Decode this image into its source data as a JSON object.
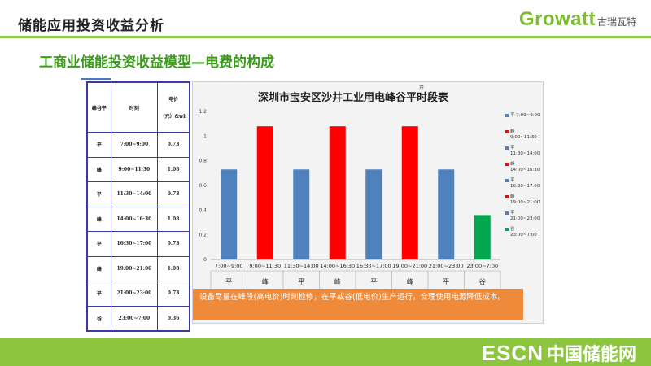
{
  "header": {
    "page_title": "储能应用投资收益分析",
    "subtitle": "工商业储能投资收益模型—电费的构成"
  },
  "brand": {
    "logo_text": "Growatt",
    "logo_cn": "古瑞瓦特",
    "footer_logo": "ESCN",
    "footer_cn": "中国储能网"
  },
  "table": {
    "headers": [
      "峰谷平",
      "时刻",
      "电价",
      "（元）&wh"
    ],
    "rows": [
      {
        "period": "平",
        "time": "7:00~9:00",
        "price": "0.73"
      },
      {
        "period": "峰",
        "time": "9:00~11:30",
        "price": "1.08"
      },
      {
        "period": "平",
        "time": "11:30~14:00",
        "price": "0.73"
      },
      {
        "period": "峰",
        "time": "14:00~16:30",
        "price": "1.08"
      },
      {
        "period": "平",
        "time": "16:30~17:00",
        "price": "0.73"
      },
      {
        "period": "峰",
        "time": "19:00~21:00",
        "price": "1.08"
      },
      {
        "period": "平",
        "time": "21:00~23:00",
        "price": "0.73"
      },
      {
        "period": "谷",
        "time": "23:00~7:00",
        "price": "0.36"
      }
    ]
  },
  "chart_data": {
    "type": "bar",
    "title": "深圳市宝安区沙井工业用电峰谷平时段表",
    "title_mark": "开",
    "categories": [
      "7:00~9:00",
      "9:00~11:30",
      "11:30~14:00",
      "14:00~16:30",
      "16:30~17:00",
      "19:00~21:00",
      "21:00~23:00",
      "23:00~7:00"
    ],
    "group_labels": [
      "平",
      "峰",
      "平",
      "峰",
      "平",
      "峰",
      "平",
      "谷"
    ],
    "values": [
      0.73,
      1.08,
      0.73,
      1.08,
      0.73,
      1.08,
      0.73,
      0.36
    ],
    "bar_colors": [
      "#4f81bd",
      "#ff0000",
      "#4f81bd",
      "#ff0000",
      "#4f81bd",
      "#ff0000",
      "#4f81bd",
      "#00a650"
    ],
    "ylim": [
      0,
      1.2
    ],
    "yticks": [
      "0",
      "0.2",
      "0.4",
      "0.6",
      "0.8",
      "1",
      "1.2"
    ],
    "grid": false,
    "legend_position": "right",
    "legend": [
      {
        "label": "平 7:00~9:00",
        "color": "#4f81bd"
      },
      {
        "label": "峰 9:00~11:30",
        "color": "#ff0000"
      },
      {
        "label": "平 11:30~14:00",
        "color": "#4f81bd"
      },
      {
        "label": "峰 14:00~16:30",
        "color": "#ff0000"
      },
      {
        "label": "平 16:30~17:00",
        "color": "#4f81bd"
      },
      {
        "label": "峰 19:00~21:00",
        "color": "#ff0000"
      },
      {
        "label": "平 21:00~23:00",
        "color": "#4f81bd"
      },
      {
        "label": "谷 23:00~7:00",
        "color": "#00a650"
      }
    ],
    "note": "设备尽量在峰段(高电价)时刻检修，在平或谷(低电价)生产运行，合理使用电源降低成本。"
  }
}
